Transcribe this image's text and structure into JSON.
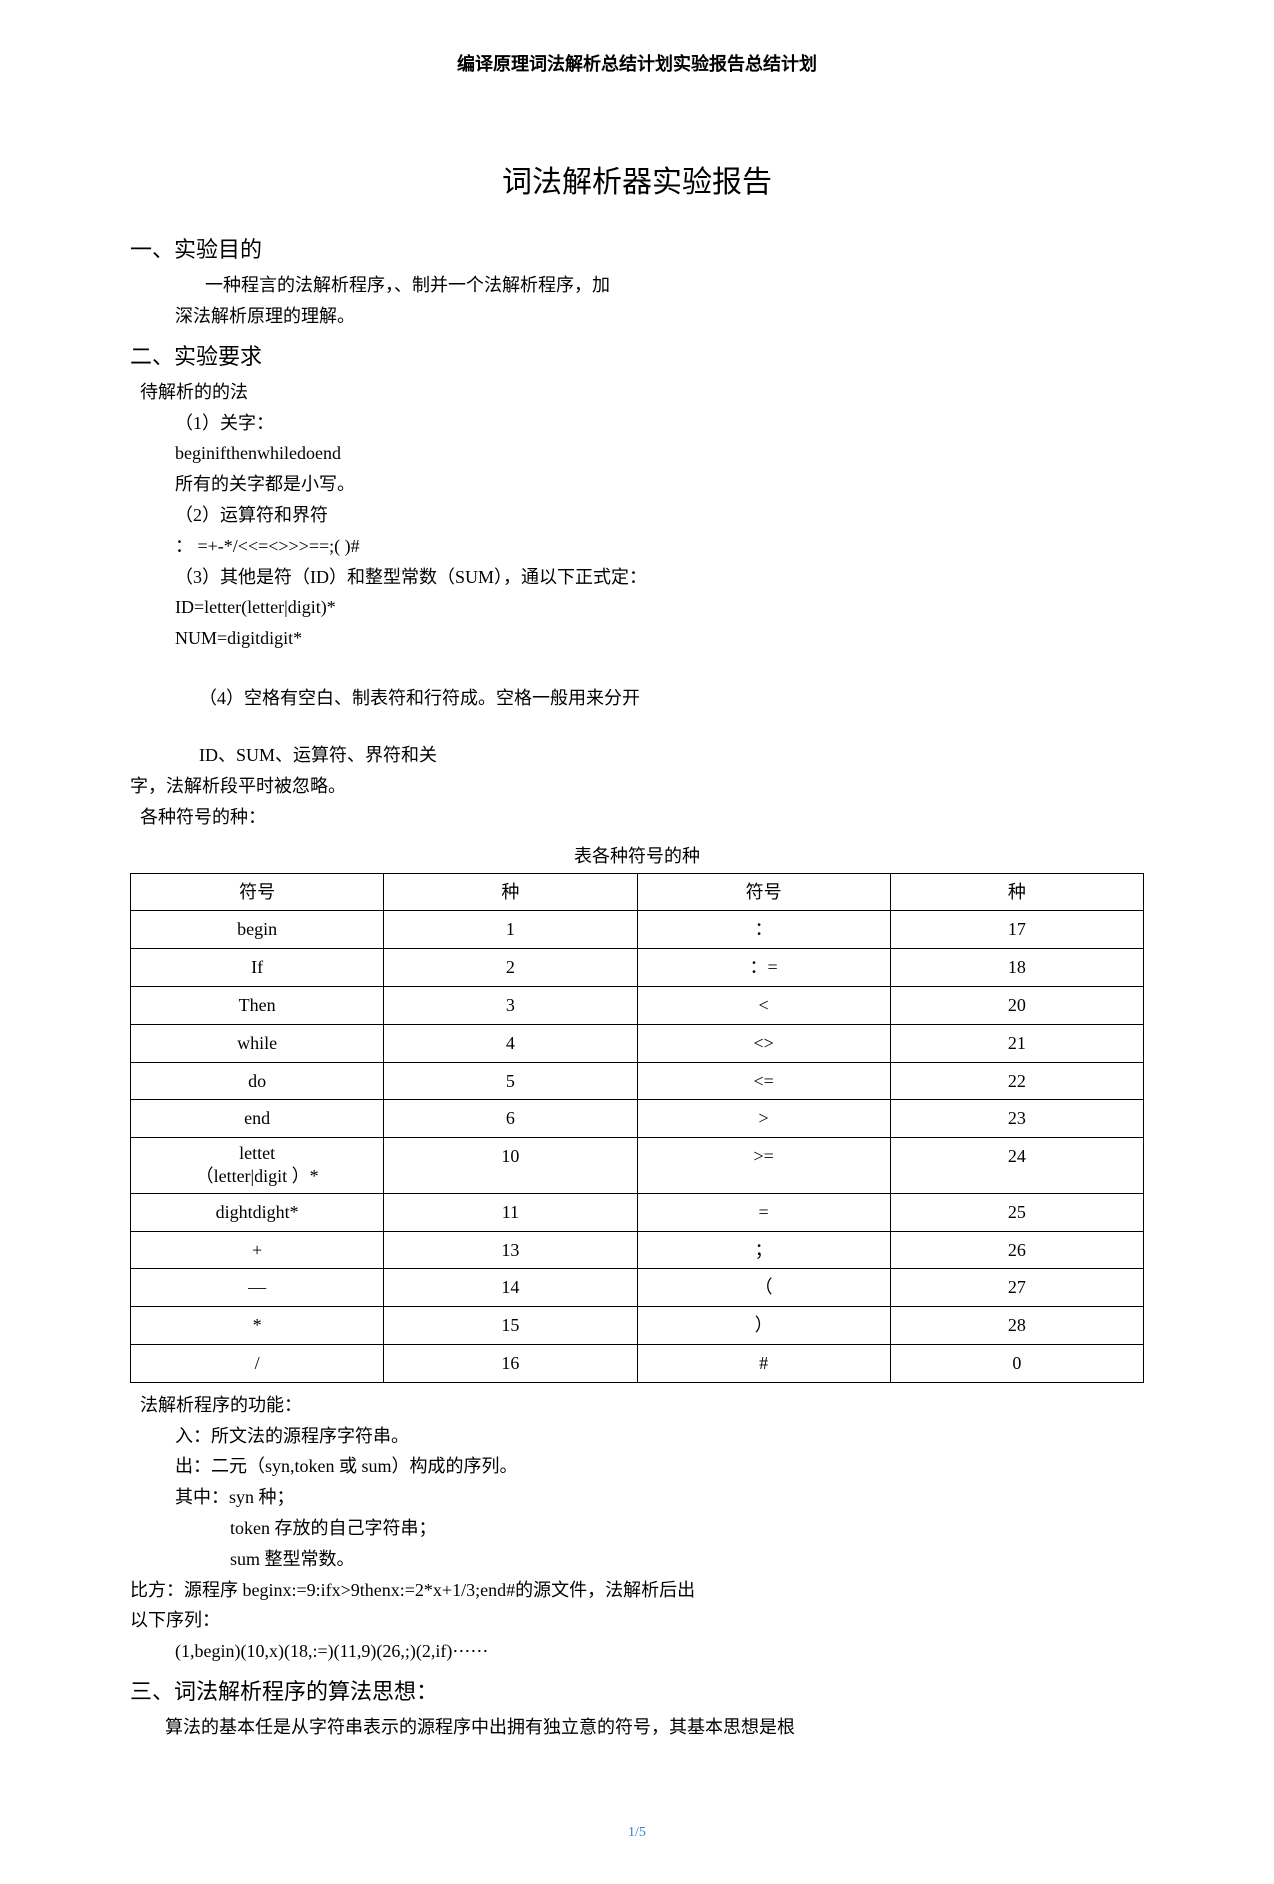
{
  "header": "编译原理词法解析总结计划实验报告总结计划",
  "title": "词法解析器实验报告",
  "section1": {
    "heading": "一、实验目的",
    "line1": "一种程言的法解析程序，、制并一个法解析程序，加",
    "line2": "深法解析原理的理解。"
  },
  "section2": {
    "heading": "二、实验要求",
    "sub1": "待解析的的法",
    "p1_label": "（1）关字：",
    "p1_kw": "beginifthenwhiledoend",
    "p1_note": "所有的关字都是小写。",
    "p2_label": "（2）运算符和界符",
    "p2_ops": "：  =+-*/<<=<>>>==;(  )#",
    "p3_label": "（3）其他是符（ID）和整型常数（SUM），通以下正式定：",
    "p3_id": "ID=letter(letter|digit)*",
    "p3_num": "NUM=digitdigit*",
    "p4_a": "（4）空格有空白、制表符和行符成。空格一般用来分开",
    "p4_b": "ID、SUM、运算符、界符和关",
    "p4_c": "字，法解析段平时被忽略。",
    "sub2": "各种符号的种：",
    "table_caption": "表各种符号的种",
    "columns": [
      "符号",
      "种",
      "符号",
      "种"
    ],
    "rows": [
      [
        "begin",
        "1",
        "：",
        "17"
      ],
      [
        "If",
        "2",
        "：=",
        "18"
      ],
      [
        "Then",
        "3",
        "<",
        "20"
      ],
      [
        "while",
        "4",
        "<>",
        "21"
      ],
      [
        "do",
        "5",
        "<=",
        "22"
      ],
      [
        "end",
        "6",
        ">",
        "23"
      ],
      [
        "lettet\n（letter|digit       ）*",
        "10",
        ">=",
        "24"
      ],
      [
        "dightdight*",
        "11",
        "=",
        "25"
      ],
      [
        "+",
        "13",
        "；",
        "26"
      ],
      [
        "—",
        "14",
        "（",
        "27"
      ],
      [
        "*",
        "15",
        "）",
        "28"
      ],
      [
        "/",
        "16",
        "#",
        "0"
      ]
    ],
    "func_label": "法解析程序的功能：",
    "func_in": "入：所文法的源程序字符串。",
    "func_out": "出：二元（syn,token 或 sum）构成的序列。",
    "func_where": "其中：syn 种；",
    "func_token": "token 存放的自己字符串；",
    "func_sum": "sum 整型常数。",
    "example1": "比方：源程序 beginx:=9:ifx>9thenx:=2*x+1/3;end#的源文件，法解析后出",
    "example2": "以下序列：",
    "example3": "(1,begin)(10,x)(18,:=)(11,9)(26,;)(2,if)⋯⋯"
  },
  "section3": {
    "heading": "三、词法解析程序的算法思想：",
    "body": "算法的基本任是从字符串表示的源程序中出拥有独立意的符号，其基本思想是根"
  },
  "page_num": "1/5",
  "style": {
    "body_font_size": 18,
    "title_font_size": 30,
    "section_font_size": 22,
    "text_color": "#000000",
    "bg_color": "#ffffff",
    "border_color": "#000000",
    "page_num_color": "#3b7dd8"
  }
}
